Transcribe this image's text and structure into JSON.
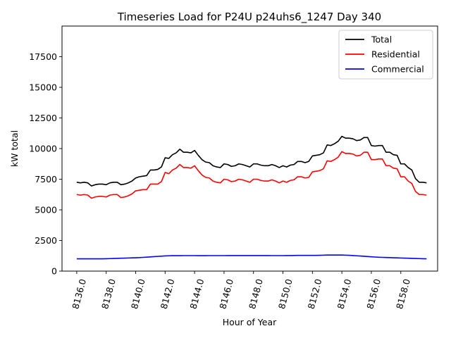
{
  "chart_data": {
    "type": "line",
    "title": "Timeseries Load for P24U p24uhs6_1247  Day 340",
    "xlabel": "Hour of Year",
    "ylabel": "kW total",
    "xlim": [
      8135.0,
      8160.5
    ],
    "ylim": [
      0,
      20000
    ],
    "x_ticks": [
      "8136.0",
      "8138.0",
      "8140.0",
      "8142.0",
      "8144.0",
      "8146.0",
      "8148.0",
      "8150.0",
      "8152.0",
      "8154.0",
      "8156.0",
      "8158.0"
    ],
    "x_tick_values": [
      8136,
      8138,
      8140,
      8142,
      8144,
      8146,
      8148,
      8150,
      8152,
      8154,
      8156,
      8158
    ],
    "y_ticks": [
      "0",
      "2500",
      "5000",
      "7500",
      "10000",
      "12500",
      "15000",
      "17500"
    ],
    "y_tick_values": [
      0,
      2500,
      5000,
      7500,
      10000,
      12500,
      15000,
      17500
    ],
    "legend_position": "top-right",
    "x_start": 8136.0,
    "x_step": 0.25,
    "series": [
      {
        "name": "Total",
        "color": "#000000",
        "values": [
          7250,
          7200,
          7250,
          7200,
          6950,
          7050,
          7100,
          7100,
          7050,
          7200,
          7250,
          7250,
          7050,
          7100,
          7200,
          7350,
          7600,
          7700,
          7750,
          7800,
          8250,
          8250,
          8300,
          8500,
          9250,
          9200,
          9500,
          9650,
          9950,
          9700,
          9700,
          9650,
          9850,
          9450,
          9100,
          8900,
          8850,
          8600,
          8500,
          8450,
          8750,
          8700,
          8550,
          8600,
          8750,
          8700,
          8600,
          8500,
          8750,
          8750,
          8650,
          8600,
          8600,
          8700,
          8600,
          8450,
          8600,
          8500,
          8650,
          8700,
          8950,
          8950,
          8850,
          8950,
          9400,
          9450,
          9500,
          9650,
          10300,
          10250,
          10400,
          10600,
          11000,
          10850,
          10850,
          10800,
          10650,
          10700,
          10900,
          10900,
          10250,
          10200,
          10250,
          10250,
          9700,
          9700,
          9500,
          9450,
          8750,
          8750,
          8450,
          8250,
          7550,
          7250,
          7250,
          7200
        ]
      },
      {
        "name": "Residential",
        "color": "#ff0000",
        "values": [
          6250,
          6200,
          6250,
          6200,
          5950,
          6050,
          6100,
          6100,
          6050,
          6200,
          6250,
          6250,
          6000,
          6050,
          6150,
          6300,
          6550,
          6600,
          6650,
          6650,
          7100,
          7100,
          7100,
          7300,
          8050,
          7950,
          8250,
          8400,
          8700,
          8450,
          8450,
          8400,
          8600,
          8200,
          7850,
          7650,
          7600,
          7350,
          7250,
          7200,
          7500,
          7450,
          7300,
          7350,
          7500,
          7450,
          7350,
          7250,
          7500,
          7500,
          7400,
          7350,
          7350,
          7450,
          7350,
          7200,
          7350,
          7250,
          7400,
          7450,
          7700,
          7700,
          7600,
          7650,
          8100,
          8150,
          8200,
          8350,
          9000,
          8950,
          9100,
          9300,
          9750,
          9600,
          9600,
          9550,
          9400,
          9450,
          9700,
          9700,
          9100,
          9100,
          9150,
          9150,
          8600,
          8600,
          8400,
          8350,
          7700,
          7700,
          7350,
          7150,
          6500,
          6250,
          6250,
          6200
        ]
      },
      {
        "name": "Commercial",
        "color": "#0000ff",
        "values": [
          1000,
          1000,
          1000,
          1000,
          1000,
          1000,
          1000,
          1000,
          1010,
          1020,
          1030,
          1040,
          1050,
          1060,
          1070,
          1080,
          1090,
          1100,
          1120,
          1140,
          1160,
          1180,
          1200,
          1220,
          1240,
          1250,
          1260,
          1260,
          1260,
          1265,
          1265,
          1265,
          1265,
          1260,
          1260,
          1260,
          1265,
          1265,
          1265,
          1265,
          1265,
          1270,
          1270,
          1270,
          1270,
          1270,
          1270,
          1270,
          1270,
          1270,
          1270,
          1270,
          1270,
          1265,
          1265,
          1265,
          1265,
          1270,
          1270,
          1275,
          1280,
          1280,
          1280,
          1280,
          1280,
          1280,
          1290,
          1300,
          1310,
          1310,
          1310,
          1310,
          1310,
          1300,
          1290,
          1270,
          1250,
          1230,
          1210,
          1190,
          1170,
          1150,
          1130,
          1120,
          1110,
          1100,
          1090,
          1080,
          1070,
          1060,
          1050,
          1040,
          1030,
          1020,
          1010,
          1000
        ]
      }
    ]
  }
}
